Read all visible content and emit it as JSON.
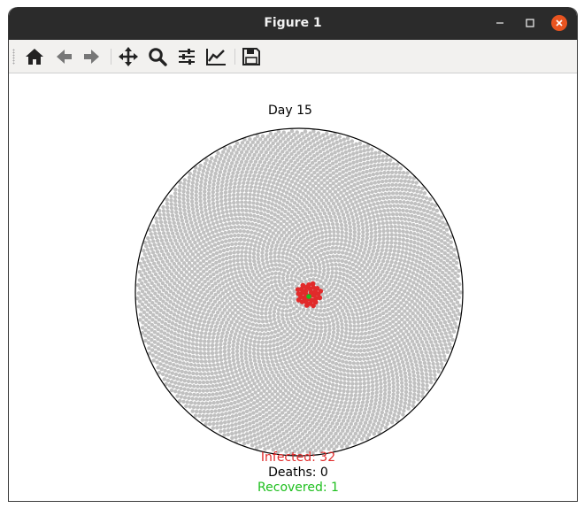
{
  "window": {
    "title": "Figure 1",
    "close_color": "#e95420"
  },
  "toolbar": {
    "buttons": [
      {
        "name": "home-icon",
        "tooltip": "Reset original view"
      },
      {
        "name": "back-arrow-icon",
        "tooltip": "Back to previous view"
      },
      {
        "name": "forward-arrow-icon",
        "tooltip": "Forward to next view"
      },
      {
        "name": "pan-icon",
        "tooltip": "Pan axes"
      },
      {
        "name": "zoom-icon",
        "tooltip": "Zoom to rectangle"
      },
      {
        "name": "subplots-icon",
        "tooltip": "Configure subplots"
      },
      {
        "name": "edit-axes-icon",
        "tooltip": "Edit axis, curve and image parameters"
      },
      {
        "name": "save-icon",
        "tooltip": "Save the figure"
      }
    ]
  },
  "figure": {
    "title": "Day 15",
    "stats": {
      "infected": "Infected: 32",
      "deaths": "Deaths: 0",
      "recovered": "Recovered: 1"
    },
    "colors": {
      "healthy": "#c0c0c0",
      "infected": "#e12b2b",
      "recovered": "#1dbf1d",
      "deaths": "#000000",
      "boundary": "#000000"
    }
  },
  "chart_data": {
    "type": "scatter",
    "title": "Day 15",
    "layout": "phyllotaxis spiral of individuals within a circular region",
    "population_style": "dense sunflower-seed pattern",
    "counts": {
      "infected": 32,
      "deaths": 0,
      "recovered": 1
    },
    "series": [
      {
        "name": "Infected",
        "color": "#e12b2b",
        "region": "small cluster at center"
      },
      {
        "name": "Recovered",
        "color": "#1dbf1d",
        "region": "center"
      },
      {
        "name": "Healthy",
        "color": "#c0c0c0",
        "region": "rest of disk"
      }
    ],
    "grid": false,
    "axes_visible": false
  }
}
